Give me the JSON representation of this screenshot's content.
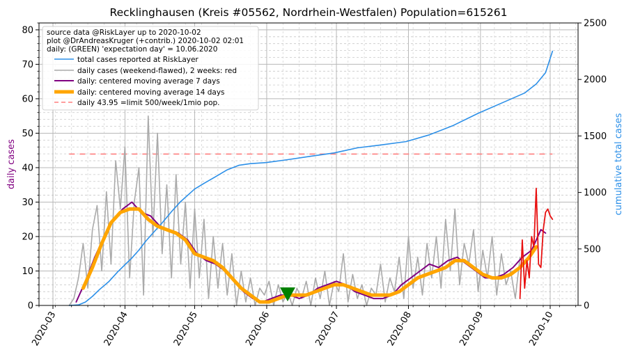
{
  "chart_data": {
    "type": "line",
    "title": "Recklinghausen (Kreis #05562, Nordrhein-Westfalen) Population=615261",
    "ylabel_left": "daily cases",
    "ylabel_right": "cumulative total cases",
    "ylim_left": [
      0,
      82
    ],
    "ylim_right": [
      0,
      2500
    ],
    "xlim": [
      "2020-02-24",
      "2020-10-13"
    ],
    "yticks_left": [
      0,
      10,
      20,
      30,
      40,
      50,
      60,
      70,
      80
    ],
    "yticks_right": [
      0,
      500,
      1000,
      1500,
      2000,
      2500
    ],
    "xticks": [
      "2020-03",
      "2020-04",
      "2020-05",
      "2020-06",
      "2020-07",
      "2020-08",
      "2020-09",
      "2020-10"
    ],
    "grid": true,
    "legend_placement": "top-left",
    "colors": {
      "total": "#2b8fe8",
      "daily": "#aaaaaa",
      "daily_recent": "#e81010",
      "ma7": "#800080",
      "ma14": "#ffa500",
      "limit": "#ff7f7f",
      "expectation": "#008000",
      "label_left": "#800080",
      "label_right": "#2b8fe8"
    },
    "legend_header": [
      "source data @RiskLayer up to 2020-10-02",
      "plot @DrAndreasKruger (+contrib.) 2020-10-02 02:01",
      "daily: (GREEN) 'expectation day' = 10.06.2020"
    ],
    "legend_entries": [
      "total cases reported at RiskLayer",
      "daily cases (weekend-flawed), 2 weeks: red",
      "daily: centered moving average 7 days",
      "daily: centered moving average 14 days",
      "daily 43.95 =limit 500/week/1mio pop."
    ],
    "limit_value": 43.95,
    "limit_range": [
      "2020-03-08",
      "2020-10-02"
    ],
    "expectation_day": "2020-06-10",
    "series": [
      {
        "key": "total",
        "axis": "right",
        "x": [
          "2020-03-08",
          "2020-03-12",
          "2020-03-15",
          "2020-03-18",
          "2020-03-21",
          "2020-03-25",
          "2020-03-29",
          "2020-04-01",
          "2020-04-04",
          "2020-04-07",
          "2020-04-10",
          "2020-04-13",
          "2020-04-17",
          "2020-04-21",
          "2020-04-25",
          "2020-05-01",
          "2020-05-05",
          "2020-05-10",
          "2020-05-15",
          "2020-05-20",
          "2020-05-25",
          "2020-06-01",
          "2020-06-10",
          "2020-06-20",
          "2020-06-30",
          "2020-07-10",
          "2020-07-20",
          "2020-07-31",
          "2020-08-10",
          "2020-08-20",
          "2020-08-31",
          "2020-09-10",
          "2020-09-20",
          "2020-09-25",
          "2020-09-29",
          "2020-10-02"
        ],
        "y": [
          0,
          5,
          30,
          80,
          140,
          210,
          300,
          360,
          420,
          490,
          570,
          640,
          730,
          830,
          920,
          1030,
          1080,
          1140,
          1200,
          1240,
          1255,
          1265,
          1290,
          1320,
          1350,
          1395,
          1420,
          1450,
          1510,
          1590,
          1700,
          1790,
          1880,
          1960,
          2060,
          2250
        ]
      },
      {
        "key": "daily",
        "axis": "left",
        "x": [
          "2020-03-08",
          "2020-03-10",
          "2020-03-12",
          "2020-03-14",
          "2020-03-16",
          "2020-03-18",
          "2020-03-20",
          "2020-03-22",
          "2020-03-24",
          "2020-03-26",
          "2020-03-28",
          "2020-03-30",
          "2020-04-01",
          "2020-04-03",
          "2020-04-05",
          "2020-04-07",
          "2020-04-09",
          "2020-04-11",
          "2020-04-13",
          "2020-04-15",
          "2020-04-17",
          "2020-04-19",
          "2020-04-21",
          "2020-04-23",
          "2020-04-25",
          "2020-04-27",
          "2020-04-29",
          "2020-05-01",
          "2020-05-03",
          "2020-05-05",
          "2020-05-07",
          "2020-05-09",
          "2020-05-11",
          "2020-05-13",
          "2020-05-15",
          "2020-05-17",
          "2020-05-19",
          "2020-05-21",
          "2020-05-23",
          "2020-05-25",
          "2020-05-27",
          "2020-05-29",
          "2020-05-31",
          "2020-06-02",
          "2020-06-04",
          "2020-06-06",
          "2020-06-08",
          "2020-06-10",
          "2020-06-12",
          "2020-06-14",
          "2020-06-16",
          "2020-06-18",
          "2020-06-20",
          "2020-06-22",
          "2020-06-24",
          "2020-06-26",
          "2020-06-28",
          "2020-06-30",
          "2020-07-02",
          "2020-07-04",
          "2020-07-06",
          "2020-07-08",
          "2020-07-10",
          "2020-07-12",
          "2020-07-14",
          "2020-07-16",
          "2020-07-18",
          "2020-07-20",
          "2020-07-22",
          "2020-07-24",
          "2020-07-26",
          "2020-07-28",
          "2020-07-30",
          "2020-08-01",
          "2020-08-03",
          "2020-08-05",
          "2020-08-07",
          "2020-08-09",
          "2020-08-11",
          "2020-08-13",
          "2020-08-15",
          "2020-08-17",
          "2020-08-19",
          "2020-08-21",
          "2020-08-23",
          "2020-08-25",
          "2020-08-27",
          "2020-08-29",
          "2020-08-31",
          "2020-09-02",
          "2020-09-04",
          "2020-09-06",
          "2020-09-08",
          "2020-09-10",
          "2020-09-12",
          "2020-09-14",
          "2020-09-16",
          "2020-09-18"
        ],
        "y": [
          0,
          2,
          8,
          18,
          5,
          22,
          29,
          10,
          33,
          12,
          42,
          28,
          46,
          8,
          30,
          40,
          3,
          55,
          20,
          50,
          15,
          35,
          8,
          38,
          12,
          30,
          5,
          28,
          8,
          25,
          2,
          20,
          5,
          18,
          3,
          15,
          0,
          10,
          1,
          8,
          0,
          5,
          3,
          7,
          0,
          6,
          1,
          4,
          0,
          5,
          2,
          7,
          0,
          8,
          2,
          10,
          0,
          7,
          4,
          15,
          1,
          9,
          2,
          6,
          0,
          5,
          3,
          12,
          1,
          8,
          4,
          14,
          2,
          20,
          5,
          14,
          3,
          18,
          8,
          20,
          5,
          25,
          10,
          28,
          6,
          18,
          12,
          22,
          4,
          16,
          8,
          20,
          3,
          15,
          6,
          10,
          2,
          14
        ]
      },
      {
        "key": "daily_recent",
        "axis": "left",
        "x": [
          "2020-09-18",
          "2020-09-19",
          "2020-09-20",
          "2020-09-21",
          "2020-09-22",
          "2020-09-23",
          "2020-09-24",
          "2020-09-25",
          "2020-09-26",
          "2020-09-27",
          "2020-09-28",
          "2020-09-29",
          "2020-09-30",
          "2020-10-01",
          "2020-10-02"
        ],
        "y": [
          2,
          19,
          5,
          13,
          8,
          20,
          17,
          34,
          12,
          11,
          22,
          27,
          28,
          26,
          25
        ]
      },
      {
        "key": "ma7",
        "axis": "left",
        "x": [
          "2020-03-11",
          "2020-03-15",
          "2020-03-19",
          "2020-03-23",
          "2020-03-27",
          "2020-03-31",
          "2020-04-04",
          "2020-04-08",
          "2020-04-12",
          "2020-04-16",
          "2020-04-20",
          "2020-04-24",
          "2020-04-28",
          "2020-05-02",
          "2020-05-06",
          "2020-05-10",
          "2020-05-14",
          "2020-05-18",
          "2020-05-22",
          "2020-05-26",
          "2020-05-30",
          "2020-06-03",
          "2020-06-07",
          "2020-06-11",
          "2020-06-15",
          "2020-06-19",
          "2020-06-23",
          "2020-06-27",
          "2020-07-01",
          "2020-07-05",
          "2020-07-09",
          "2020-07-13",
          "2020-07-17",
          "2020-07-21",
          "2020-07-25",
          "2020-07-29",
          "2020-08-02",
          "2020-08-06",
          "2020-08-10",
          "2020-08-14",
          "2020-08-18",
          "2020-08-22",
          "2020-08-26",
          "2020-08-30",
          "2020-09-03",
          "2020-09-07",
          "2020-09-11",
          "2020-09-15",
          "2020-09-19",
          "2020-09-23",
          "2020-09-27",
          "2020-09-29"
        ],
        "y": [
          1,
          7,
          14,
          20,
          25,
          28,
          30,
          27,
          26,
          23,
          22,
          21,
          19,
          15,
          13,
          12,
          10,
          7,
          4,
          2,
          1,
          2,
          3,
          3,
          2,
          3,
          5,
          6,
          7,
          6,
          4,
          3,
          2,
          2,
          3,
          6,
          8,
          10,
          12,
          11,
          13,
          14,
          12,
          10,
          8,
          8,
          9,
          11,
          14,
          16,
          22,
          21
        ]
      },
      {
        "key": "ma14",
        "axis": "left",
        "x": [
          "2020-03-14",
          "2020-03-18",
          "2020-03-22",
          "2020-03-26",
          "2020-03-30",
          "2020-04-03",
          "2020-04-07",
          "2020-04-11",
          "2020-04-15",
          "2020-04-19",
          "2020-04-23",
          "2020-04-27",
          "2020-05-01",
          "2020-05-05",
          "2020-05-09",
          "2020-05-13",
          "2020-05-17",
          "2020-05-21",
          "2020-05-25",
          "2020-05-29",
          "2020-06-02",
          "2020-06-06",
          "2020-06-10",
          "2020-06-14",
          "2020-06-18",
          "2020-06-22",
          "2020-06-26",
          "2020-06-30",
          "2020-07-04",
          "2020-07-08",
          "2020-07-12",
          "2020-07-16",
          "2020-07-20",
          "2020-07-24",
          "2020-07-28",
          "2020-08-01",
          "2020-08-05",
          "2020-08-09",
          "2020-08-13",
          "2020-08-17",
          "2020-08-21",
          "2020-08-25",
          "2020-08-29",
          "2020-09-02",
          "2020-09-06",
          "2020-09-10",
          "2020-09-14",
          "2020-09-18",
          "2020-09-22",
          "2020-09-25"
        ],
        "y": [
          5,
          11,
          18,
          24,
          27,
          28,
          28,
          25,
          23,
          22,
          21,
          19,
          15,
          14,
          13,
          11,
          8,
          5,
          3,
          1,
          1,
          2,
          3,
          3,
          3,
          4,
          5,
          6,
          6,
          5,
          4,
          3,
          3,
          3,
          4,
          6,
          8,
          9,
          10,
          11,
          13,
          13,
          11,
          9,
          8,
          8,
          9,
          11,
          14,
          17
        ]
      }
    ]
  }
}
